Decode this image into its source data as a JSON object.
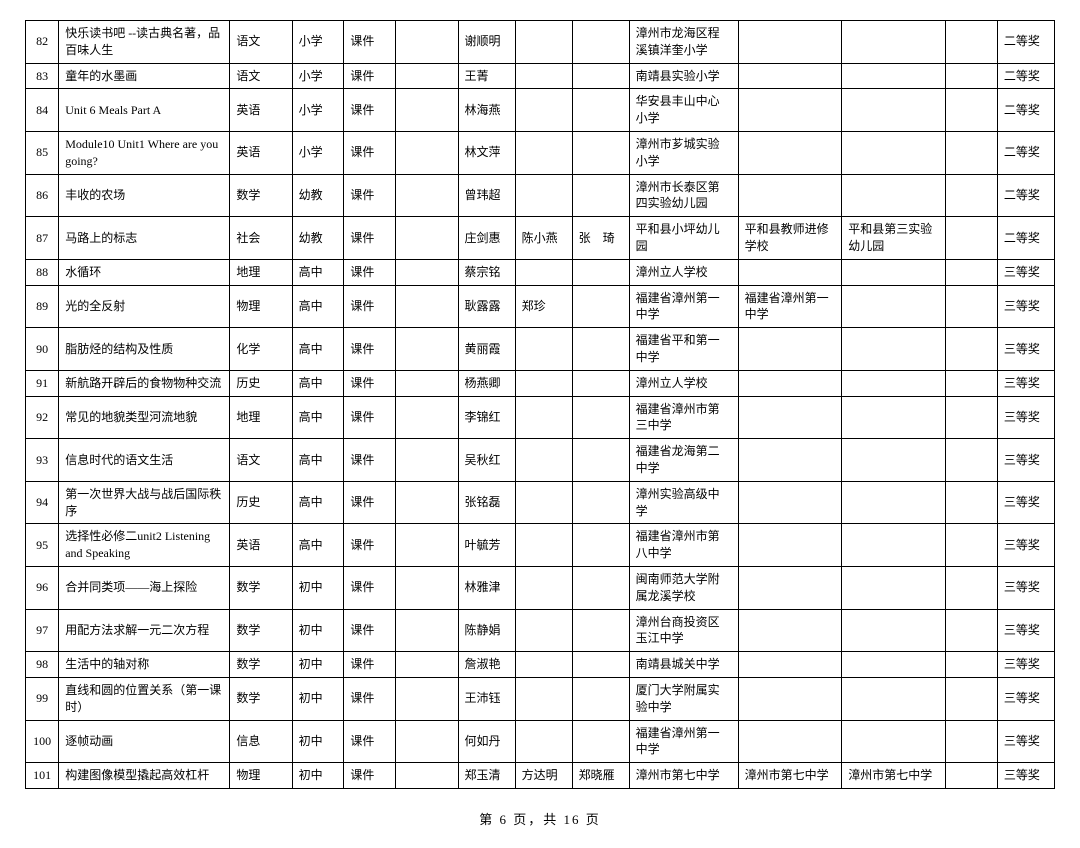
{
  "footer": "第 6 页，共 16 页",
  "rows": [
    {
      "num": "82",
      "title": "快乐读书吧 --读古典名著，品百味人生",
      "subject": "语文",
      "level": "小学",
      "type": "课件",
      "gap1": "",
      "p1": "谢顺明",
      "p2": "",
      "p3": "",
      "s1": "漳州市龙海区程溪镇洋奎小学",
      "s2": "",
      "s3": "",
      "gap2": "",
      "award": "二等奖"
    },
    {
      "num": "83",
      "title": "童年的水墨画",
      "subject": "语文",
      "level": "小学",
      "type": "课件",
      "gap1": "",
      "p1": "王菁",
      "p2": "",
      "p3": "",
      "s1": "南靖县实验小学",
      "s2": "",
      "s3": "",
      "gap2": "",
      "award": "二等奖"
    },
    {
      "num": "84",
      "title": "Unit 6 Meals Part A",
      "subject": "英语",
      "level": "小学",
      "type": "课件",
      "gap1": "",
      "p1": "林海燕",
      "p2": "",
      "p3": "",
      "s1": "华安县丰山中心小学",
      "s2": "",
      "s3": "",
      "gap2": "",
      "award": "二等奖"
    },
    {
      "num": "85",
      "title": "Module10  Unit1 Where are you going?",
      "subject": "英语",
      "level": "小学",
      "type": "课件",
      "gap1": "",
      "p1": "林文萍",
      "p2": "",
      "p3": "",
      "s1": "漳州市芗城实验小学",
      "s2": "",
      "s3": "",
      "gap2": "",
      "award": "二等奖"
    },
    {
      "num": "86",
      "title": "丰收的农场",
      "subject": "数学",
      "level": "幼教",
      "type": "课件",
      "gap1": "",
      "p1": "曾玮超",
      "p2": "",
      "p3": "",
      "s1": "漳州市长泰区第四实验幼儿园",
      "s2": "",
      "s3": "",
      "gap2": "",
      "award": "二等奖"
    },
    {
      "num": "87",
      "title": "马路上的标志",
      "subject": "社会",
      "level": "幼教",
      "type": "课件",
      "gap1": "",
      "p1": "庄剑惠",
      "p2": "陈小燕",
      "p3": "张　琦",
      "s1": "平和县小坪幼儿园",
      "s2": "平和县教师进修学校",
      "s3": "平和县第三实验幼儿园",
      "gap2": "",
      "award": "二等奖"
    },
    {
      "num": "88",
      "title": "水循环",
      "subject": "地理",
      "level": "高中",
      "type": "课件",
      "gap1": "",
      "p1": "蔡宗铭",
      "p2": "",
      "p3": "",
      "s1": "漳州立人学校",
      "s2": "",
      "s3": "",
      "gap2": "",
      "award": "三等奖"
    },
    {
      "num": "89",
      "title": "光的全反射",
      "subject": "物理",
      "level": "高中",
      "type": "课件",
      "gap1": "",
      "p1": "耿露露",
      "p2": "郑珍",
      "p3": "",
      "s1": "福建省漳州第一中学",
      "s2": "福建省漳州第一中学",
      "s3": "",
      "gap2": "",
      "award": "三等奖"
    },
    {
      "num": "90",
      "title": "脂肪烃的结构及性质",
      "subject": "化学",
      "level": "高中",
      "type": "课件",
      "gap1": "",
      "p1": "黄丽霞",
      "p2": "",
      "p3": "",
      "s1": "福建省平和第一中学",
      "s2": "",
      "s3": "",
      "gap2": "",
      "award": "三等奖"
    },
    {
      "num": "91",
      "title": "新航路开辟后的食物物种交流",
      "subject": "历史",
      "level": "高中",
      "type": "课件",
      "gap1": "",
      "p1": "杨燕卿",
      "p2": "",
      "p3": "",
      "s1": "漳州立人学校",
      "s2": "",
      "s3": "",
      "gap2": "",
      "award": "三等奖"
    },
    {
      "num": "92",
      "title": "常见的地貌类型河流地貌",
      "subject": "地理",
      "level": "高中",
      "type": "课件",
      "gap1": "",
      "p1": "李锦红",
      "p2": "",
      "p3": "",
      "s1": "福建省漳州市第三中学",
      "s2": "",
      "s3": "",
      "gap2": "",
      "award": "三等奖"
    },
    {
      "num": "93",
      "title": "信息时代的语文生活",
      "subject": "语文",
      "level": "高中",
      "type": "课件",
      "gap1": "",
      "p1": "吴秋红",
      "p2": "",
      "p3": "",
      "s1": "福建省龙海第二中学",
      "s2": "",
      "s3": "",
      "gap2": "",
      "award": "三等奖"
    },
    {
      "num": "94",
      "title": "第一次世界大战与战后国际秩序",
      "subject": "历史",
      "level": "高中",
      "type": "课件",
      "gap1": "",
      "p1": "张铭磊",
      "p2": "",
      "p3": "",
      "s1": "漳州实验高级中学",
      "s2": "",
      "s3": "",
      "gap2": "",
      "award": "三等奖"
    },
    {
      "num": "95",
      "title": "选择性必修二unit2 Listening and Speaking",
      "subject": "英语",
      "level": "高中",
      "type": "课件",
      "gap1": "",
      "p1": "叶毓芳",
      "p2": "",
      "p3": "",
      "s1": "福建省漳州市第八中学",
      "s2": "",
      "s3": "",
      "gap2": "",
      "award": "三等奖"
    },
    {
      "num": "96",
      "title": "合并同类项——海上探险",
      "subject": "数学",
      "level": "初中",
      "type": "课件",
      "gap1": "",
      "p1": "林雅津",
      "p2": "",
      "p3": "",
      "s1": "闽南师范大学附属龙溪学校",
      "s2": "",
      "s3": "",
      "gap2": "",
      "award": "三等奖"
    },
    {
      "num": "97",
      "title": "用配方法求解一元二次方程",
      "subject": "数学",
      "level": "初中",
      "type": "课件",
      "gap1": "",
      "p1": "陈静娟",
      "p2": "",
      "p3": "",
      "s1": "漳州台商投资区玉江中学",
      "s2": "",
      "s3": "",
      "gap2": "",
      "award": "三等奖"
    },
    {
      "num": "98",
      "title": "生活中的轴对称",
      "subject": "数学",
      "level": "初中",
      "type": "课件",
      "gap1": "",
      "p1": "詹淑艳",
      "p2": "",
      "p3": "",
      "s1": "南靖县城关中学",
      "s2": "",
      "s3": "",
      "gap2": "",
      "award": "三等奖"
    },
    {
      "num": "99",
      "title": "直线和圆的位置关系（第一课时）",
      "subject": "数学",
      "level": "初中",
      "type": "课件",
      "gap1": "",
      "p1": "王沛钰",
      "p2": "",
      "p3": "",
      "s1": "厦门大学附属实验中学",
      "s2": "",
      "s3": "",
      "gap2": "",
      "award": "三等奖"
    },
    {
      "num": "100",
      "title": "逐帧动画",
      "subject": "信息",
      "level": "初中",
      "type": "课件",
      "gap1": "",
      "p1": "何如丹",
      "p2": "",
      "p3": "",
      "s1": "福建省漳州第一中学",
      "s2": "",
      "s3": "",
      "gap2": "",
      "award": "三等奖"
    },
    {
      "num": "101",
      "title": "构建图像模型撬起高效杠杆",
      "subject": "物理",
      "level": "初中",
      "type": "课件",
      "gap1": "",
      "p1": "郑玉清",
      "p2": "方达明",
      "p3": "郑晓雁",
      "s1": "漳州市第七中学",
      "s2": "漳州市第七中学",
      "s3": "漳州市第七中学",
      "gap2": "",
      "award": "三等奖"
    }
  ]
}
